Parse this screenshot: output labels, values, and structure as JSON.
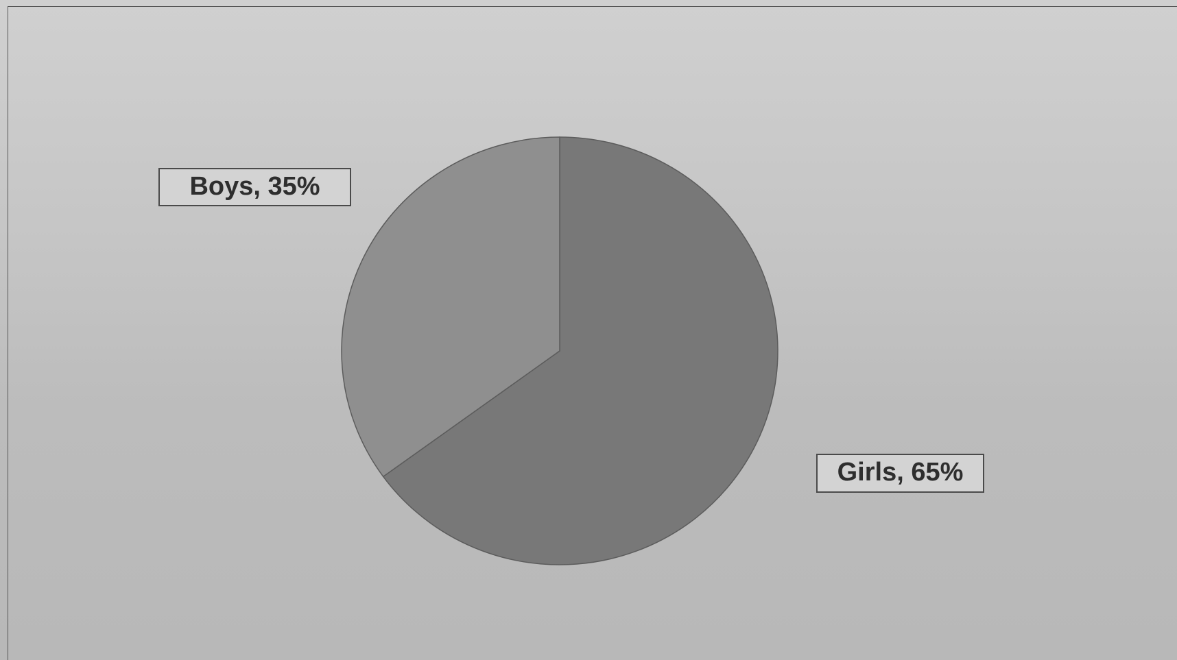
{
  "chart_data": {
    "type": "pie",
    "slices": [
      {
        "name": "Girls",
        "value": 65,
        "label": "Girls, 65%",
        "color": "#787878"
      },
      {
        "name": "Boys",
        "value": 35,
        "label": "Boys, 35%",
        "color": "#8f8f8f"
      }
    ],
    "start_angle_deg": 0,
    "direction": "clockwise",
    "legend": "none",
    "data_labels": "outside-boxed"
  }
}
